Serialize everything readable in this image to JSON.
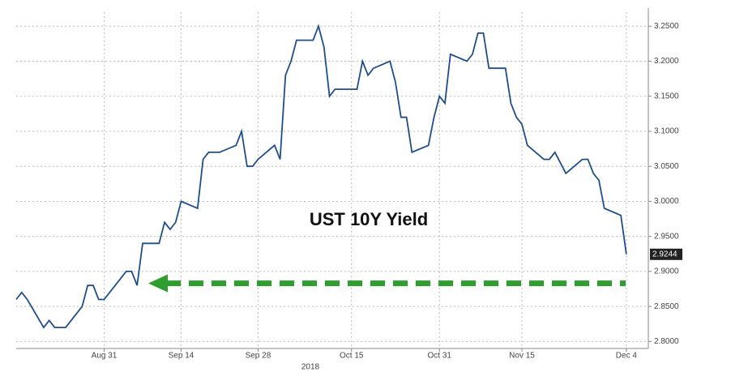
{
  "chart_data": {
    "type": "line",
    "annotation": "UST 10Y Yield",
    "x_year_label": "2018",
    "color": "#1f4e8c",
    "x": [
      "2018-08-15",
      "2018-08-16",
      "2018-08-17",
      "2018-08-20",
      "2018-08-21",
      "2018-08-22",
      "2018-08-23",
      "2018-08-24",
      "2018-08-27",
      "2018-08-28",
      "2018-08-29",
      "2018-08-30",
      "2018-08-31",
      "2018-09-04",
      "2018-09-05",
      "2018-09-06",
      "2018-09-07",
      "2018-09-10",
      "2018-09-11",
      "2018-09-12",
      "2018-09-13",
      "2018-09-14",
      "2018-09-17",
      "2018-09-18",
      "2018-09-19",
      "2018-09-20",
      "2018-09-21",
      "2018-09-24",
      "2018-09-25",
      "2018-09-26",
      "2018-09-27",
      "2018-09-28",
      "2018-10-01",
      "2018-10-02",
      "2018-10-03",
      "2018-10-04",
      "2018-10-05",
      "2018-10-08",
      "2018-10-09",
      "2018-10-10",
      "2018-10-11",
      "2018-10-12",
      "2018-10-15",
      "2018-10-16",
      "2018-10-17",
      "2018-10-18",
      "2018-10-19",
      "2018-10-22",
      "2018-10-23",
      "2018-10-24",
      "2018-10-25",
      "2018-10-26",
      "2018-10-29",
      "2018-10-30",
      "2018-10-31",
      "2018-11-01",
      "2018-11-02",
      "2018-11-05",
      "2018-11-06",
      "2018-11-07",
      "2018-11-08",
      "2018-11-09",
      "2018-11-12",
      "2018-11-13",
      "2018-11-14",
      "2018-11-15",
      "2018-11-16",
      "2018-11-19",
      "2018-11-20",
      "2018-11-21",
      "2018-11-23",
      "2018-11-26",
      "2018-11-27",
      "2018-11-28",
      "2018-11-29",
      "2018-11-30",
      "2018-12-03",
      "2018-12-04"
    ],
    "values": [
      2.86,
      2.87,
      2.86,
      2.82,
      2.83,
      2.82,
      2.82,
      2.82,
      2.85,
      2.88,
      2.88,
      2.86,
      2.86,
      2.9,
      2.9,
      2.88,
      2.94,
      2.94,
      2.97,
      2.96,
      2.97,
      3.0,
      2.99,
      3.06,
      3.07,
      3.07,
      3.07,
      3.08,
      3.1,
      3.05,
      3.05,
      3.06,
      3.08,
      3.06,
      3.18,
      3.2,
      3.23,
      3.23,
      3.25,
      3.22,
      3.15,
      3.16,
      3.16,
      3.16,
      3.2,
      3.18,
      3.19,
      3.2,
      3.17,
      3.12,
      3.12,
      3.07,
      3.08,
      3.12,
      3.15,
      3.14,
      3.21,
      3.2,
      3.21,
      3.24,
      3.24,
      3.19,
      3.19,
      3.14,
      3.12,
      3.11,
      3.08,
      3.06,
      3.06,
      3.07,
      3.04,
      3.06,
      3.06,
      3.04,
      3.03,
      2.99,
      2.98,
      2.9244
    ],
    "xlim": [
      "2018-08-15",
      "2018-12-08"
    ],
    "xticks": [
      {
        "value": "2018-08-31",
        "label": "Aug 31"
      },
      {
        "value": "2018-09-14",
        "label": "Sep 14"
      },
      {
        "value": "2018-09-28",
        "label": "Sep 28"
      },
      {
        "value": "2018-10-15",
        "label": "Oct 15"
      },
      {
        "value": "2018-10-31",
        "label": "Oct 31"
      },
      {
        "value": "2018-11-15",
        "label": "Nov 15"
      },
      {
        "value": "2018-12-04",
        "label": "Dec 4"
      }
    ],
    "ylim": [
      2.79,
      3.27
    ],
    "yticks": [
      {
        "value": 2.8,
        "label": "2.8000"
      },
      {
        "value": 2.85,
        "label": "2.8500"
      },
      {
        "value": 2.9,
        "label": "2.9000"
      },
      {
        "value": 2.95,
        "label": "2.9500"
      },
      {
        "value": 3.0,
        "label": "3.0000"
      },
      {
        "value": 3.05,
        "label": "3.0500"
      },
      {
        "value": 3.1,
        "label": "3.1000"
      },
      {
        "value": 3.15,
        "label": "3.1500"
      },
      {
        "value": 3.2,
        "label": "3.2000"
      },
      {
        "value": 3.25,
        "label": "3.2500"
      }
    ],
    "grid": true,
    "arrow": {
      "value": 2.883,
      "color": "#2e9e2e"
    }
  }
}
